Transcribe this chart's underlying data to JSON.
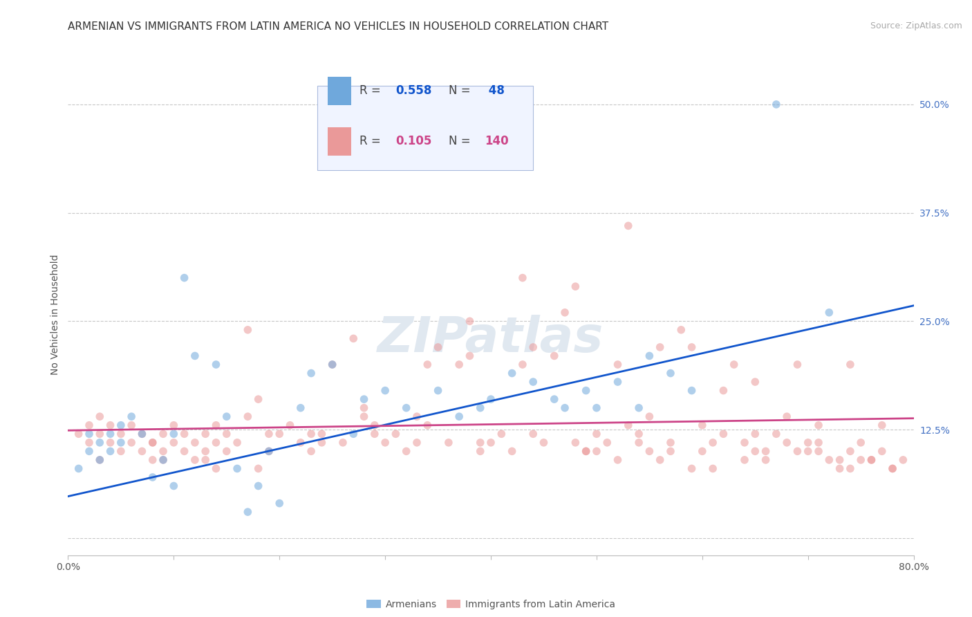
{
  "title": "ARMENIAN VS IMMIGRANTS FROM LATIN AMERICA NO VEHICLES IN HOUSEHOLD CORRELATION CHART",
  "source": "Source: ZipAtlas.com",
  "ylabel": "No Vehicles in Household",
  "xlim": [
    0.0,
    0.8
  ],
  "ylim": [
    -0.02,
    0.535
  ],
  "xticks": [
    0.0,
    0.1,
    0.2,
    0.3,
    0.4,
    0.5,
    0.6,
    0.7,
    0.8
  ],
  "xticklabels": [
    "0.0%",
    "",
    "",
    "",
    "",
    "",
    "",
    "",
    "80.0%"
  ],
  "yticks": [
    0.0,
    0.125,
    0.25,
    0.375,
    0.5
  ],
  "yticklabels": [
    "",
    "12.5%",
    "25.0%",
    "37.5%",
    "50.0%"
  ],
  "y_tick_color": "#4472c4",
  "grid_color": "#c8c8c8",
  "background_color": "#ffffff",
  "blue_color": "#6fa8dc",
  "pink_color": "#ea9999",
  "trend_blue": "#1155cc",
  "trend_pink": "#cc4488",
  "watermark_color": "#e0e8f0",
  "armenian_x": [
    0.01,
    0.02,
    0.02,
    0.03,
    0.03,
    0.04,
    0.04,
    0.05,
    0.05,
    0.06,
    0.07,
    0.08,
    0.09,
    0.1,
    0.1,
    0.11,
    0.12,
    0.14,
    0.15,
    0.16,
    0.17,
    0.18,
    0.19,
    0.2,
    0.22,
    0.23,
    0.25,
    0.27,
    0.28,
    0.3,
    0.32,
    0.35,
    0.37,
    0.39,
    0.4,
    0.42,
    0.44,
    0.46,
    0.47,
    0.49,
    0.5,
    0.52,
    0.54,
    0.55,
    0.57,
    0.59,
    0.67,
    0.72
  ],
  "armenian_y": [
    0.08,
    0.1,
    0.12,
    0.09,
    0.11,
    0.1,
    0.12,
    0.11,
    0.13,
    0.14,
    0.12,
    0.07,
    0.09,
    0.12,
    0.06,
    0.3,
    0.21,
    0.2,
    0.14,
    0.08,
    0.03,
    0.06,
    0.1,
    0.04,
    0.15,
    0.19,
    0.2,
    0.12,
    0.16,
    0.17,
    0.15,
    0.17,
    0.14,
    0.15,
    0.16,
    0.19,
    0.18,
    0.16,
    0.15,
    0.17,
    0.15,
    0.18,
    0.15,
    0.21,
    0.19,
    0.17,
    0.5,
    0.26
  ],
  "latin_x": [
    0.01,
    0.02,
    0.02,
    0.03,
    0.03,
    0.04,
    0.04,
    0.05,
    0.05,
    0.06,
    0.06,
    0.07,
    0.07,
    0.08,
    0.08,
    0.09,
    0.09,
    0.1,
    0.1,
    0.11,
    0.11,
    0.12,
    0.12,
    0.13,
    0.13,
    0.14,
    0.14,
    0.15,
    0.15,
    0.16,
    0.17,
    0.17,
    0.18,
    0.19,
    0.2,
    0.21,
    0.22,
    0.23,
    0.24,
    0.25,
    0.26,
    0.27,
    0.28,
    0.29,
    0.3,
    0.31,
    0.32,
    0.33,
    0.34,
    0.35,
    0.36,
    0.37,
    0.38,
    0.39,
    0.4,
    0.41,
    0.42,
    0.43,
    0.44,
    0.45,
    0.46,
    0.47,
    0.48,
    0.49,
    0.5,
    0.51,
    0.52,
    0.53,
    0.54,
    0.55,
    0.56,
    0.57,
    0.58,
    0.59,
    0.6,
    0.61,
    0.62,
    0.63,
    0.64,
    0.65,
    0.66,
    0.67,
    0.68,
    0.69,
    0.7,
    0.71,
    0.72,
    0.73,
    0.74,
    0.75,
    0.76,
    0.77,
    0.78,
    0.62,
    0.65,
    0.68,
    0.71,
    0.74,
    0.77,
    0.53,
    0.48,
    0.43,
    0.38,
    0.33,
    0.28,
    0.23,
    0.18,
    0.13,
    0.08,
    0.03,
    0.09,
    0.14,
    0.19,
    0.24,
    0.29,
    0.34,
    0.39,
    0.44,
    0.49,
    0.54,
    0.59,
    0.64,
    0.69,
    0.74,
    0.79,
    0.55,
    0.6,
    0.65,
    0.7,
    0.75,
    0.73,
    0.78,
    0.5,
    0.56,
    0.61,
    0.66,
    0.71,
    0.76,
    0.52,
    0.57
  ],
  "latin_y": [
    0.12,
    0.11,
    0.13,
    0.12,
    0.14,
    0.11,
    0.13,
    0.1,
    0.12,
    0.11,
    0.13,
    0.1,
    0.12,
    0.11,
    0.09,
    0.1,
    0.12,
    0.11,
    0.13,
    0.12,
    0.1,
    0.11,
    0.09,
    0.1,
    0.12,
    0.11,
    0.13,
    0.12,
    0.1,
    0.11,
    0.24,
    0.14,
    0.16,
    0.1,
    0.12,
    0.13,
    0.11,
    0.1,
    0.12,
    0.2,
    0.11,
    0.23,
    0.14,
    0.13,
    0.11,
    0.12,
    0.1,
    0.11,
    0.2,
    0.22,
    0.11,
    0.2,
    0.21,
    0.1,
    0.11,
    0.12,
    0.1,
    0.2,
    0.22,
    0.11,
    0.21,
    0.26,
    0.11,
    0.1,
    0.12,
    0.11,
    0.2,
    0.13,
    0.12,
    0.1,
    0.22,
    0.11,
    0.24,
    0.22,
    0.1,
    0.11,
    0.12,
    0.2,
    0.11,
    0.1,
    0.09,
    0.12,
    0.11,
    0.2,
    0.1,
    0.11,
    0.09,
    0.08,
    0.1,
    0.11,
    0.09,
    0.1,
    0.08,
    0.17,
    0.18,
    0.14,
    0.13,
    0.2,
    0.13,
    0.36,
    0.29,
    0.3,
    0.25,
    0.14,
    0.15,
    0.12,
    0.08,
    0.09,
    0.11,
    0.09,
    0.09,
    0.08,
    0.12,
    0.11,
    0.12,
    0.13,
    0.11,
    0.12,
    0.1,
    0.11,
    0.08,
    0.09,
    0.1,
    0.08,
    0.09,
    0.14,
    0.13,
    0.12,
    0.11,
    0.09,
    0.09,
    0.08,
    0.1,
    0.09,
    0.08,
    0.1,
    0.1,
    0.09,
    0.09,
    0.1
  ],
  "blue_trend_x": [
    0.0,
    0.8
  ],
  "blue_trend_y": [
    0.048,
    0.268
  ],
  "pink_trend_x": [
    0.0,
    0.8
  ],
  "pink_trend_y": [
    0.124,
    0.138
  ],
  "marker_size": 70,
  "marker_alpha": 0.55,
  "title_fontsize": 11,
  "label_fontsize": 10,
  "tick_fontsize": 10,
  "legend_fontsize": 12,
  "source_fontsize": 9
}
